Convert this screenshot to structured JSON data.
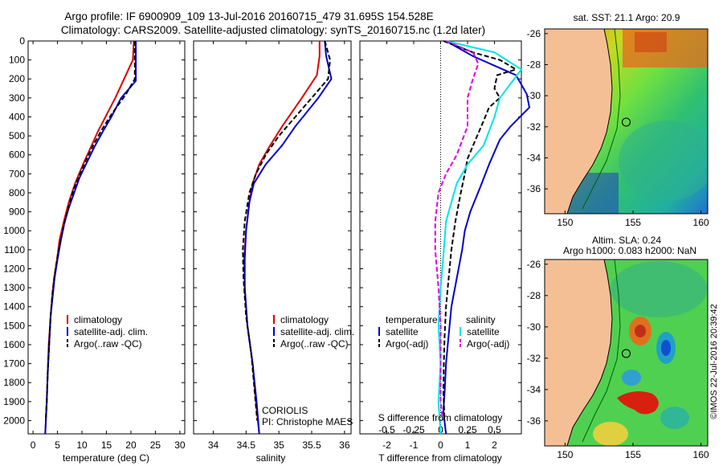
{
  "header": {
    "line1": "Argo profile: IF 6900909_109 13-Jul-2016 20160715_479 31.695S 154.528E",
    "line2": "Climatology: CARS2009. Satellite-adjusted climatology: synTS_20160715.nc (1.2d later)"
  },
  "colors": {
    "clim": "#dd0000",
    "sat": "#0000cc",
    "argo": "#000000",
    "sat_s": "#00e5e5",
    "argo_s": "#e000e0",
    "land": "#f5bf96",
    "coast": "#000000"
  },
  "depth_ticks": [
    "0",
    "100",
    "200",
    "300",
    "400",
    "500",
    "600",
    "700",
    "800",
    "900",
    "1000",
    "1100",
    "1200",
    "1300",
    "1400",
    "1500",
    "1600",
    "1700",
    "1800",
    "1900",
    "2000"
  ],
  "chart_data": [
    {
      "type": "line",
      "xlabel": "temperature (deg C)",
      "xticks": [
        "0",
        "5",
        "10",
        "15",
        "20",
        "25",
        "30"
      ],
      "xlim": [
        -1,
        31
      ],
      "ylim": [
        0,
        2070
      ],
      "legend": [
        "climatology",
        "satellite-adj. clim.",
        "Argo(..raw -QC)"
      ],
      "legend_placement": "lower-center",
      "series": [
        {
          "name": "climatology",
          "style": "solid",
          "color": "clim",
          "points": [
            [
              20.6,
              0
            ],
            [
              20.4,
              100
            ],
            [
              19.5,
              150
            ],
            [
              16.8,
              300
            ],
            [
              15.2,
              380
            ],
            [
              13.2,
              480
            ],
            [
              11.8,
              560
            ],
            [
              10.2,
              650
            ],
            [
              8.6,
              750
            ],
            [
              7.3,
              850
            ],
            [
              6.3,
              950
            ],
            [
              5.4,
              1050
            ],
            [
              4.9,
              1150
            ],
            [
              4.3,
              1250
            ],
            [
              3.9,
              1350
            ],
            [
              3.6,
              1450
            ],
            [
              3.2,
              1600
            ],
            [
              3.0,
              1750
            ],
            [
              2.8,
              1900
            ],
            [
              2.5,
              2070
            ]
          ]
        },
        {
          "name": "satellite-adj. clim.",
          "style": "solid",
          "color": "sat",
          "points": [
            [
              21.0,
              0
            ],
            [
              21.0,
              210
            ],
            [
              18.0,
              300
            ],
            [
              16.0,
              400
            ],
            [
              14.2,
              480
            ],
            [
              12.5,
              560
            ],
            [
              11.0,
              640
            ],
            [
              9.5,
              720
            ],
            [
              8.4,
              800
            ],
            [
              7.3,
              880
            ],
            [
              6.4,
              960
            ],
            [
              5.7,
              1050
            ],
            [
              5.0,
              1150
            ],
            [
              4.4,
              1250
            ],
            [
              4.0,
              1350
            ],
            [
              3.6,
              1450
            ],
            [
              3.3,
              1600
            ],
            [
              3.0,
              1750
            ],
            [
              2.8,
              1900
            ],
            [
              2.5,
              2070
            ]
          ]
        },
        {
          "name": "Argo(..raw -QC)",
          "style": "dashed",
          "color": "argo",
          "points": [
            [
              20.8,
              0
            ],
            [
              20.8,
              200
            ],
            [
              19.0,
              280
            ],
            [
              16.2,
              380
            ],
            [
              14.0,
              470
            ],
            [
              12.3,
              550
            ],
            [
              10.8,
              630
            ],
            [
              9.6,
              700
            ],
            [
              8.3,
              780
            ],
            [
              7.4,
              860
            ],
            [
              6.6,
              940
            ],
            [
              5.8,
              1030
            ],
            [
              5.1,
              1120
            ],
            [
              4.5,
              1220
            ],
            [
              4.0,
              1320
            ],
            [
              3.6,
              1450
            ],
            [
              3.3,
              1600
            ],
            [
              3.0,
              1750
            ],
            [
              2.8,
              1900
            ],
            [
              2.6,
              2000
            ]
          ]
        }
      ]
    },
    {
      "type": "line",
      "xlabel": "salinity",
      "xticks": [
        "34",
        "34.5",
        "35",
        "35.5",
        "36"
      ],
      "xlim": [
        33.7,
        36.1
      ],
      "ylim": [
        0,
        2070
      ],
      "legend": [
        "climatology",
        "satellite-adj. clim.",
        "Argo(..raw -QC)"
      ],
      "legend_placement": "lower-center",
      "annotation": [
        "CORIOLIS",
        "PI: Christophe MAES"
      ],
      "series": [
        {
          "name": "climatology",
          "style": "solid",
          "color": "clim",
          "points": [
            [
              35.62,
              0
            ],
            [
              35.62,
              80
            ],
            [
              35.58,
              180
            ],
            [
              35.35,
              300
            ],
            [
              35.05,
              450
            ],
            [
              34.85,
              560
            ],
            [
              34.7,
              650
            ],
            [
              34.6,
              750
            ],
            [
              34.55,
              850
            ],
            [
              34.5,
              1000
            ],
            [
              34.47,
              1150
            ],
            [
              34.48,
              1300
            ],
            [
              34.52,
              1500
            ],
            [
              34.6,
              1700
            ],
            [
              34.65,
              1900
            ],
            [
              34.7,
              2070
            ]
          ]
        },
        {
          "name": "satellite-adj. clim.",
          "style": "solid",
          "color": "sat",
          "points": [
            [
              35.7,
              0
            ],
            [
              35.72,
              80
            ],
            [
              35.8,
              200
            ],
            [
              35.6,
              300
            ],
            [
              35.25,
              450
            ],
            [
              35.05,
              550
            ],
            [
              34.8,
              650
            ],
            [
              34.62,
              750
            ],
            [
              34.55,
              850
            ],
            [
              34.5,
              1000
            ],
            [
              34.48,
              1150
            ],
            [
              34.48,
              1300
            ],
            [
              34.52,
              1500
            ],
            [
              34.6,
              1700
            ],
            [
              34.66,
              1900
            ],
            [
              34.7,
              2070
            ]
          ]
        },
        {
          "name": "Argo(..raw -QC)",
          "style": "dashed",
          "color": "argo",
          "points": [
            [
              35.7,
              0
            ],
            [
              35.78,
              100
            ],
            [
              35.75,
              200
            ],
            [
              35.55,
              280
            ],
            [
              35.25,
              400
            ],
            [
              35.0,
              500
            ],
            [
              34.8,
              600
            ],
            [
              34.65,
              700
            ],
            [
              34.55,
              800
            ],
            [
              34.48,
              950
            ],
            [
              34.45,
              1100
            ],
            [
              34.46,
              1250
            ],
            [
              34.5,
              1450
            ],
            [
              34.58,
              1650
            ],
            [
              34.63,
              1850
            ],
            [
              34.67,
              2000
            ]
          ]
        }
      ]
    },
    {
      "type": "line",
      "xlabel": "T difference from climatology",
      "xlabel_top": "S difference from climatology",
      "xticks": [
        "-2",
        "-1",
        "0",
        "1",
        "2"
      ],
      "xticks_top": [
        "-0.5",
        "-0.25",
        "0",
        "0.25",
        "0.5"
      ],
      "xlim": [
        -3,
        3
      ],
      "ylim": [
        0,
        2070
      ],
      "legend_groups": [
        {
          "title": "temperature",
          "entries": [
            "satellite",
            "Argo(-adj)"
          ]
        },
        {
          "title": "salinity",
          "entries": [
            "satellite",
            "Argo(-adj)"
          ]
        }
      ],
      "legend_placement": "center",
      "series": [
        {
          "name": "T satellite",
          "style": "solid",
          "color": "sat",
          "points": [
            [
              0.2,
              0
            ],
            [
              1.2,
              80
            ],
            [
              2.8,
              180
            ],
            [
              3.2,
              280
            ],
            [
              3.3,
              350
            ],
            [
              2.6,
              450
            ],
            [
              2.2,
              520
            ],
            [
              1.8,
              650
            ],
            [
              1.5,
              760
            ],
            [
              1.1,
              900
            ],
            [
              0.9,
              1000
            ],
            [
              0.8,
              1100
            ],
            [
              0.6,
              1250
            ],
            [
              0.4,
              1400
            ],
            [
              0.3,
              1550
            ],
            [
              0.2,
              1700
            ],
            [
              0.15,
              1850
            ],
            [
              0.1,
              1950
            ],
            [
              0.2,
              2070
            ]
          ]
        },
        {
          "name": "T Argo(-adj)",
          "style": "dashed",
          "color": "argo",
          "points": [
            [
              0.1,
              0
            ],
            [
              1.2,
              60
            ],
            [
              2.2,
              100
            ],
            [
              2.8,
              150
            ],
            [
              2.1,
              180
            ],
            [
              2.0,
              250
            ],
            [
              2.2,
              300
            ],
            [
              1.8,
              350
            ],
            [
              1.6,
              420
            ],
            [
              1.3,
              520
            ],
            [
              1.0,
              620
            ],
            [
              0.9,
              700
            ],
            [
              0.75,
              800
            ],
            [
              0.55,
              950
            ],
            [
              0.4,
              1100
            ],
            [
              0.3,
              1250
            ],
            [
              0.2,
              1400
            ],
            [
              0.15,
              1550
            ],
            [
              0.12,
              1700
            ],
            [
              0.1,
              1850
            ],
            [
              0.15,
              2000
            ]
          ]
        },
        {
          "name": "S satellite",
          "style": "solid",
          "color": "sat_s",
          "points": [
            [
              0.05,
              0
            ],
            [
              0.5,
              60
            ],
            [
              0.75,
              150
            ],
            [
              0.55,
              300
            ],
            [
              0.5,
              400
            ],
            [
              0.4,
              550
            ],
            [
              0.25,
              650
            ],
            [
              0.15,
              750
            ],
            [
              0.1,
              850
            ],
            [
              0.05,
              950
            ],
            [
              0.03,
              1100
            ],
            [
              0.0,
              1300
            ],
            [
              -0.02,
              1500
            ],
            [
              0.0,
              1700
            ],
            [
              -0.02,
              1900
            ],
            [
              0.0,
              2070
            ]
          ]
        },
        {
          "name": "S Argo(-adj)",
          "style": "dashed",
          "color": "argo_s",
          "points": [
            [
              0.05,
              0
            ],
            [
              0.3,
              60
            ],
            [
              0.35,
              120
            ],
            [
              0.3,
              200
            ],
            [
              0.25,
              300
            ],
            [
              0.25,
              450
            ],
            [
              0.15,
              600
            ],
            [
              0.05,
              700
            ],
            [
              -0.02,
              800
            ],
            [
              -0.05,
              950
            ],
            [
              -0.05,
              1100
            ],
            [
              -0.02,
              1300
            ],
            [
              0.0,
              1500
            ],
            [
              0.0,
              1700
            ],
            [
              0.0,
              1900
            ],
            [
              0.02,
              2000
            ]
          ]
        }
      ]
    }
  ],
  "maps": [
    {
      "title": "sat. SST: 21.1  Argo: 20.9",
      "yticks": [
        "-26",
        "-28",
        "-30",
        "-32",
        "-34",
        "-36"
      ],
      "xticks": [
        "150",
        "155",
        "160"
      ],
      "marker": {
        "lon": 154.5,
        "lat": -31.7
      }
    },
    {
      "title": "Altim. SLA: 0.24",
      "subtitle": "Argo h1000: 0.083 h2000: NaN",
      "yticks": [
        "-26",
        "-28",
        "-30",
        "-32",
        "-34",
        "-36"
      ],
      "xticks": [
        "150",
        "155",
        "160"
      ],
      "marker": {
        "lon": 154.5,
        "lat": -31.7
      }
    }
  ],
  "watermark": "©IMOS 22-Jul-2016 20:39:42"
}
